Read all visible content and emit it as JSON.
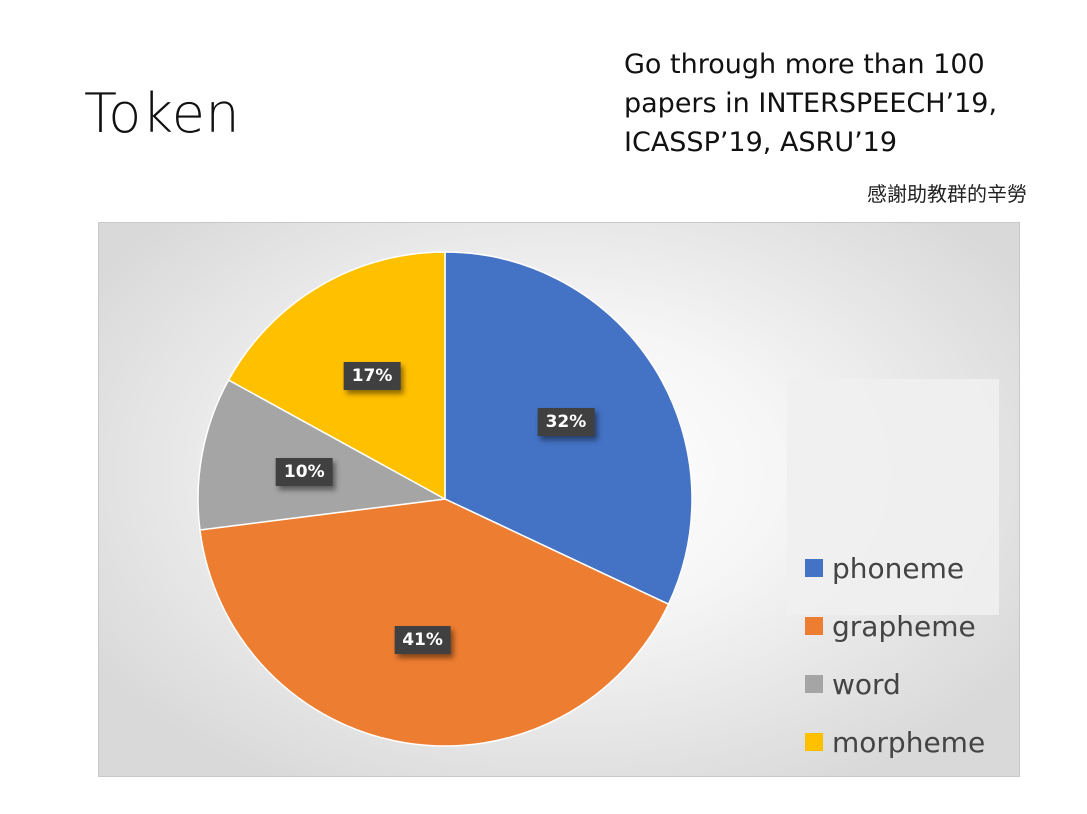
{
  "slide": {
    "title": "Token",
    "note_lines": [
      "Go through more than 100",
      "papers in INTERSPEECH’19,",
      "ICASSP’19, ASRU’19"
    ],
    "thanks": "感謝助教群的辛勞"
  },
  "chart_data": {
    "type": "pie",
    "title": "",
    "categories": [
      "phoneme",
      "grapheme",
      "word",
      "morpheme"
    ],
    "values": [
      32,
      41,
      10,
      17
    ],
    "labels": [
      "32%",
      "41%",
      "10%",
      "17%"
    ],
    "colors": [
      "#4472C4",
      "#ED7D31",
      "#A5A5A5",
      "#FFC000"
    ],
    "start": "12 o'clock, clockwise",
    "legend_position": "right"
  }
}
